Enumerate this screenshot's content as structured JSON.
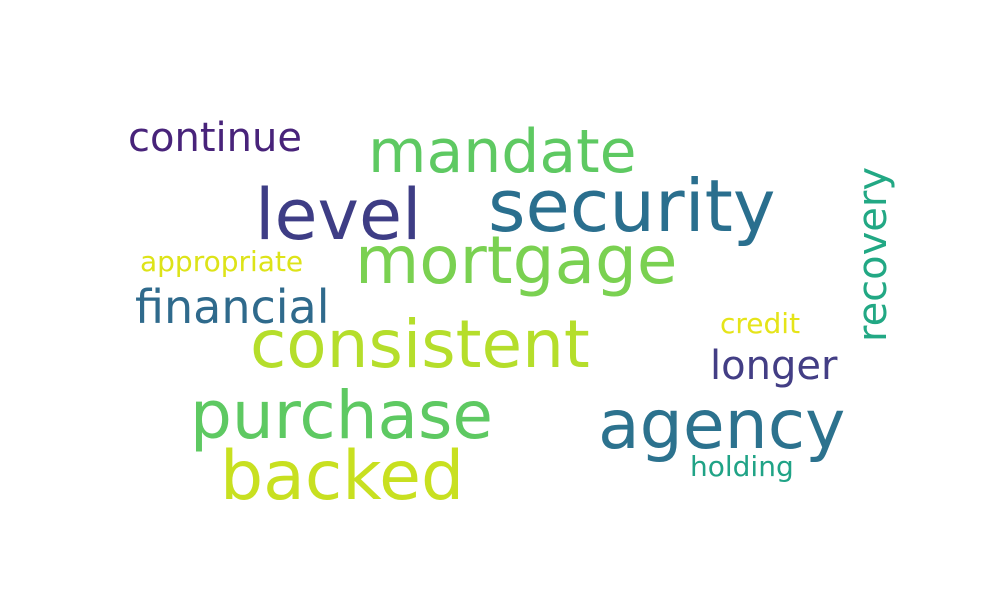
{
  "words": [
    {
      "text": "continue",
      "color": "#48237a"
    },
    {
      "text": "mandate",
      "color": "#5ec962"
    },
    {
      "text": "level",
      "color": "#3e3d85"
    },
    {
      "text": "security",
      "color": "#2a6f8e"
    },
    {
      "text": "recovery",
      "color": "#22a884"
    },
    {
      "text": "appropriate",
      "color": "#dde318"
    },
    {
      "text": "mortgage",
      "color": "#7ad151"
    },
    {
      "text": "financial",
      "color": "#2f6a8c"
    },
    {
      "text": "credit",
      "color": "#e5e419"
    },
    {
      "text": "consistent",
      "color": "#b5de2b"
    },
    {
      "text": "longer",
      "color": "#433e85"
    },
    {
      "text": "purchase",
      "color": "#5ec962"
    },
    {
      "text": "agency",
      "color": "#2c728e"
    },
    {
      "text": "backed",
      "color": "#c8e020"
    },
    {
      "text": "holding",
      "color": "#20a386"
    }
  ]
}
